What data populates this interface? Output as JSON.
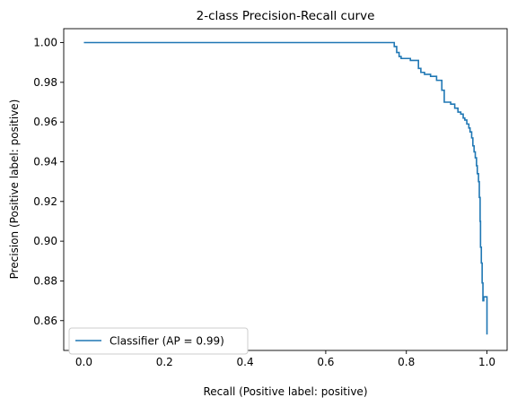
{
  "chart_data": {
    "type": "line",
    "title": "2-class Precision-Recall curve",
    "xlabel": "Recall (Positive label: positive)",
    "ylabel": "Precision (Positive label: positive)",
    "xlim": [
      -0.05,
      1.05
    ],
    "ylim": [
      0.845,
      1.007
    ],
    "xticks": [
      0.0,
      0.2,
      0.4,
      0.6,
      0.8,
      1.0
    ],
    "xtick_labels": [
      "0.0",
      "0.2",
      "0.4",
      "0.6",
      "0.8",
      "1.0"
    ],
    "yticks": [
      0.86,
      0.88,
      0.9,
      0.92,
      0.94,
      0.96,
      0.98,
      1.0
    ],
    "ytick_labels": [
      "0.86",
      "0.88",
      "0.90",
      "0.92",
      "0.94",
      "0.96",
      "0.98",
      "1.00"
    ],
    "grid": false,
    "legend_position": "lower-left",
    "series": [
      {
        "name": "Classifier (AP = 0.99)",
        "color": "#1f77b4",
        "drawstyle": "steps-post",
        "x": [
          0.0,
          0.77,
          0.77,
          0.776,
          0.776,
          0.782,
          0.782,
          0.787,
          0.787,
          0.81,
          0.81,
          0.83,
          0.83,
          0.836,
          0.836,
          0.845,
          0.845,
          0.86,
          0.86,
          0.875,
          0.875,
          0.888,
          0.888,
          0.894,
          0.894,
          0.91,
          0.91,
          0.92,
          0.92,
          0.928,
          0.928,
          0.935,
          0.935,
          0.941,
          0.941,
          0.945,
          0.945,
          0.95,
          0.95,
          0.955,
          0.955,
          0.958,
          0.958,
          0.962,
          0.962,
          0.965,
          0.965,
          0.968,
          0.968,
          0.971,
          0.971,
          0.974,
          0.974,
          0.976,
          0.976,
          0.979,
          0.979,
          0.981,
          0.981,
          0.983,
          0.983,
          0.984,
          0.984,
          0.986,
          0.986,
          0.988,
          0.988,
          0.99,
          0.99,
          0.992,
          0.992,
          1.0,
          1.0
        ],
        "y": [
          1.0,
          1.0,
          0.998,
          0.998,
          0.995,
          0.995,
          0.993,
          0.993,
          0.992,
          0.992,
          0.991,
          0.991,
          0.987,
          0.987,
          0.985,
          0.985,
          0.984,
          0.984,
          0.983,
          0.983,
          0.981,
          0.981,
          0.976,
          0.976,
          0.97,
          0.97,
          0.969,
          0.969,
          0.967,
          0.967,
          0.965,
          0.965,
          0.964,
          0.964,
          0.962,
          0.962,
          0.961,
          0.961,
          0.959,
          0.959,
          0.957,
          0.957,
          0.955,
          0.955,
          0.952,
          0.952,
          0.948,
          0.948,
          0.945,
          0.945,
          0.942,
          0.942,
          0.938,
          0.938,
          0.934,
          0.934,
          0.93,
          0.93,
          0.922,
          0.922,
          0.91,
          0.91,
          0.897,
          0.897,
          0.889,
          0.889,
          0.879,
          0.879,
          0.87,
          0.87,
          0.872,
          0.872,
          0.853
        ]
      }
    ]
  }
}
